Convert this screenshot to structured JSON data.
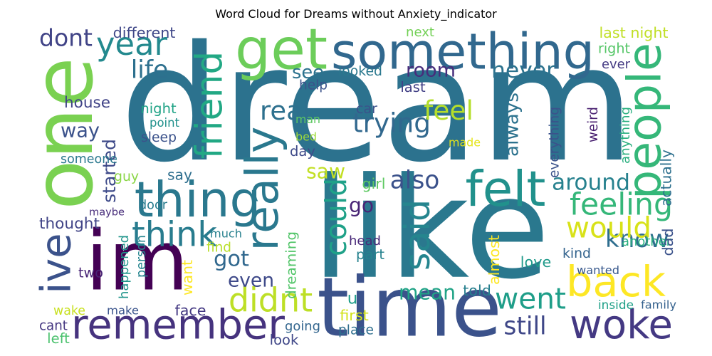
{
  "title": "Word Cloud for Dreams without Anxiety_indicator",
  "words": [
    {
      "text": "dream",
      "color": "#2c728e"
    },
    {
      "text": "like",
      "color": "#2a788e"
    },
    {
      "text": "im",
      "color": "#440154"
    },
    {
      "text": "time",
      "color": "#3b528b"
    },
    {
      "text": "one",
      "color": "#7ad151"
    },
    {
      "text": "something",
      "color": "#31688e"
    },
    {
      "text": "remember",
      "color": "#46337e"
    },
    {
      "text": "get",
      "color": "#6ccd5a"
    },
    {
      "text": "woke",
      "color": "#443983"
    },
    {
      "text": "thing",
      "color": "#2a788e"
    },
    {
      "text": "back",
      "color": "#fde725"
    },
    {
      "text": "friend",
      "color": "#22a884"
    },
    {
      "text": "really",
      "color": "#2a788e"
    },
    {
      "text": "felt",
      "color": "#21918c"
    },
    {
      "text": "people",
      "color": "#35b779"
    },
    {
      "text": "feeling",
      "color": "#35b779"
    },
    {
      "text": "think",
      "color": "#287c8e"
    },
    {
      "text": "year",
      "color": "#23898e"
    },
    {
      "text": "ive",
      "color": "#3b528b"
    },
    {
      "text": "didnt",
      "color": "#bddf26"
    },
    {
      "text": "went",
      "color": "#1f9e89"
    },
    {
      "text": "know",
      "color": "#2e6e8e"
    },
    {
      "text": "would",
      "color": "#d8e219"
    },
    {
      "text": "could",
      "color": "#1fa188"
    },
    {
      "text": "said",
      "color": "#25858e"
    },
    {
      "text": "trying",
      "color": "#31688e"
    },
    {
      "text": "dont",
      "color": "#414487"
    },
    {
      "text": "mean",
      "color": "#20a386"
    },
    {
      "text": "started",
      "color": "#3e4a89"
    },
    {
      "text": "around",
      "color": "#26818e"
    },
    {
      "text": "life",
      "color": "#2d708e"
    },
    {
      "text": "real",
      "color": "#2d708e"
    },
    {
      "text": "feel",
      "color": "#b5de2b"
    },
    {
      "text": "way",
      "color": "#3b528b"
    },
    {
      "text": "room",
      "color": "#472d7b"
    },
    {
      "text": "never",
      "color": "#2c728e"
    },
    {
      "text": "still",
      "color": "#3f4788"
    },
    {
      "text": "always",
      "color": "#2c728e"
    },
    {
      "text": "even",
      "color": "#3e4989"
    },
    {
      "text": "got",
      "color": "#31688e"
    },
    {
      "text": "see",
      "color": "#2c728e"
    },
    {
      "text": "also",
      "color": "#3b528b"
    },
    {
      "text": "saw",
      "color": "#c2df23"
    },
    {
      "text": "go",
      "color": "#482475"
    },
    {
      "text": "house",
      "color": "#404387"
    },
    {
      "text": "someone",
      "color": "#2a788e"
    },
    {
      "text": "another",
      "color": "#2ab07f"
    },
    {
      "text": "thought",
      "color": "#414487"
    },
    {
      "text": "last night",
      "color": "#c0df25"
    },
    {
      "text": "different",
      "color": "#3f4788"
    },
    {
      "text": "right",
      "color": "#55c667"
    },
    {
      "text": "ever",
      "color": "#443a83"
    },
    {
      "text": "next",
      "color": "#73d056"
    },
    {
      "text": "looked",
      "color": "#2a788e"
    },
    {
      "text": "help",
      "color": "#3b528b"
    },
    {
      "text": "last",
      "color": "#424086"
    },
    {
      "text": "car",
      "color": "#3b528b"
    },
    {
      "text": "man",
      "color": "#5ec962"
    },
    {
      "text": "night",
      "color": "#20a386"
    },
    {
      "text": "point",
      "color": "#21918c"
    },
    {
      "text": "sleep",
      "color": "#3b528b"
    },
    {
      "text": "bed",
      "color": "#9fda3a"
    },
    {
      "text": "made",
      "color": "#e5e419"
    },
    {
      "text": "day",
      "color": "#3e4a89"
    },
    {
      "text": "say",
      "color": "#2e6e8e"
    },
    {
      "text": "guy",
      "color": "#8bd646"
    },
    {
      "text": "door",
      "color": "#287c8e"
    },
    {
      "text": "girl",
      "color": "#5ec962"
    },
    {
      "text": "maybe",
      "color": "#472c7a"
    },
    {
      "text": "much",
      "color": "#27808e"
    },
    {
      "text": "find",
      "color": "#b8de29"
    },
    {
      "text": "head",
      "color": "#482878"
    },
    {
      "text": "part",
      "color": "#26828e"
    },
    {
      "text": "dreaming",
      "color": "#52c569"
    },
    {
      "text": "almost",
      "color": "#fde725"
    },
    {
      "text": "happened",
      "color": "#1f958b"
    },
    {
      "text": "person",
      "color": "#25848e"
    },
    {
      "text": "want",
      "color": "#fde725"
    },
    {
      "text": "two",
      "color": "#482475"
    },
    {
      "text": "wake",
      "color": "#c8e020"
    },
    {
      "text": "make",
      "color": "#3a548c"
    },
    {
      "text": "face",
      "color": "#443983"
    },
    {
      "text": "u",
      "color": "#1f9e89"
    },
    {
      "text": "told",
      "color": "#277f8e"
    },
    {
      "text": "first",
      "color": "#d2e21b"
    },
    {
      "text": "place",
      "color": "#2e6e8e"
    },
    {
      "text": "going",
      "color": "#32658e"
    },
    {
      "text": "look",
      "color": "#3f4788"
    },
    {
      "text": "cant",
      "color": "#453781"
    },
    {
      "text": "left",
      "color": "#4ac16d"
    },
    {
      "text": "love",
      "color": "#1f9a8a"
    },
    {
      "text": "kind",
      "color": "#33638d"
    },
    {
      "text": "wanted",
      "color": "#38588c"
    },
    {
      "text": "inside",
      "color": "#1fa088"
    },
    {
      "text": "family",
      "color": "#34618d"
    },
    {
      "text": "dad",
      "color": "#3b528b"
    },
    {
      "text": "actually",
      "color": "#2d708e"
    },
    {
      "text": "anything",
      "color": "#29af7f"
    },
    {
      "text": "everything",
      "color": "#3b528b"
    },
    {
      "text": "weird",
      "color": "#481f70"
    }
  ]
}
